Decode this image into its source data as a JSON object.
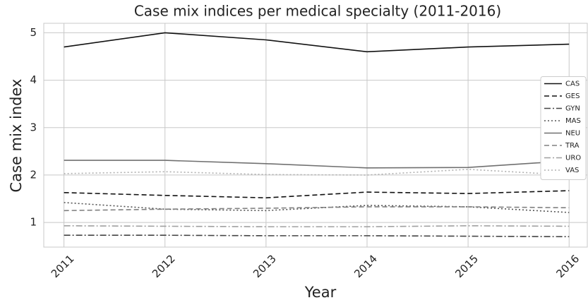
{
  "chart_data": {
    "type": "line",
    "title": "Case mix indices per medical specialty (2011-2016)",
    "x_label": "Year",
    "y_label": "Case mix index",
    "x": [
      2011,
      2012,
      2013,
      2014,
      2015,
      2016
    ],
    "xlim": [
      2010.8,
      2016.18
    ],
    "xticks": [
      2011,
      2012,
      2013,
      2014,
      2015,
      2016
    ],
    "ylim": [
      0.48,
      5.2
    ],
    "yticks": [
      1,
      2,
      3,
      4,
      5
    ],
    "grid": true,
    "legend": "center right",
    "series": [
      {
        "name": "CAS",
        "color": "#111111",
        "linestyle": "solid",
        "values": [
          4.7,
          5.0,
          4.85,
          4.6,
          4.7,
          4.76
        ]
      },
      {
        "name": "GES",
        "color": "#111111",
        "linestyle": "dashed",
        "values": [
          1.63,
          1.57,
          1.52,
          1.64,
          1.61,
          1.67
        ]
      },
      {
        "name": "GYN",
        "color": "#444444",
        "linestyle": "dashdot",
        "values": [
          0.73,
          0.73,
          0.72,
          0.72,
          0.71,
          0.7
        ]
      },
      {
        "name": "MAS",
        "color": "#555555",
        "linestyle": "dotted",
        "values": [
          1.42,
          1.28,
          1.25,
          1.36,
          1.33,
          1.21
        ]
      },
      {
        "name": "NEU",
        "color": "#707070",
        "linestyle": "solid",
        "values": [
          2.31,
          2.31,
          2.24,
          2.15,
          2.16,
          2.3
        ]
      },
      {
        "name": "TRA",
        "color": "#808080",
        "linestyle": "dashed",
        "values": [
          1.25,
          1.28,
          1.3,
          1.33,
          1.33,
          1.31
        ]
      },
      {
        "name": "URO",
        "color": "#a0a0a0",
        "linestyle": "dashdot",
        "values": [
          0.93,
          0.92,
          0.91,
          0.91,
          0.93,
          0.92
        ]
      },
      {
        "name": "VAS",
        "color": "#b0b0b0",
        "linestyle": "dotted",
        "values": [
          2.03,
          2.07,
          2.01,
          2.0,
          2.12,
          2.0
        ]
      }
    ]
  }
}
